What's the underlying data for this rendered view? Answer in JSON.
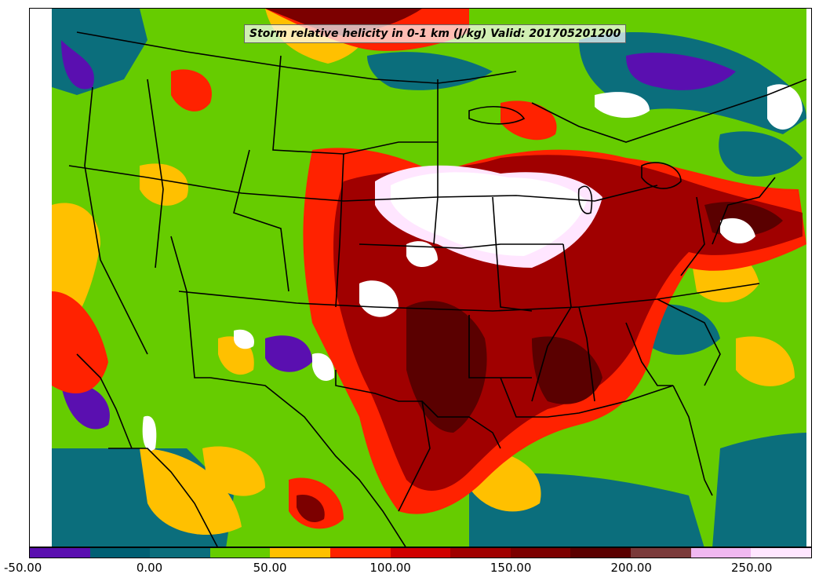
{
  "title": "Storm relative helicity in 0-1 km (J/kg) Valid: 201705201200",
  "colorbar": {
    "min": -50,
    "max": 275,
    "step": 25,
    "colors": [
      "#5a0fb0",
      "#005f73",
      "#0b6e7c",
      "#66cc00",
      "#ffc000",
      "#ff2200",
      "#d00000",
      "#a00000",
      "#7c0000",
      "#5a0000",
      "#7a3a3a",
      "#f0b8f0",
      "#ffe6ff"
    ],
    "ticks": [
      "-50.00",
      "0.00",
      "50.00",
      "100.00",
      "150.00",
      "200.00",
      "250.00"
    ],
    "tick_values": [
      -50,
      0,
      50,
      100,
      150,
      200,
      250
    ]
  },
  "colors": {
    "green": "#66cc00",
    "teal": "#0b6e7c",
    "purple": "#5a0fb0",
    "yellow": "#ffc000",
    "red": "#ff2200",
    "darkred": "#a00000",
    "maroon": "#5a0000",
    "white": "#ffffff"
  }
}
